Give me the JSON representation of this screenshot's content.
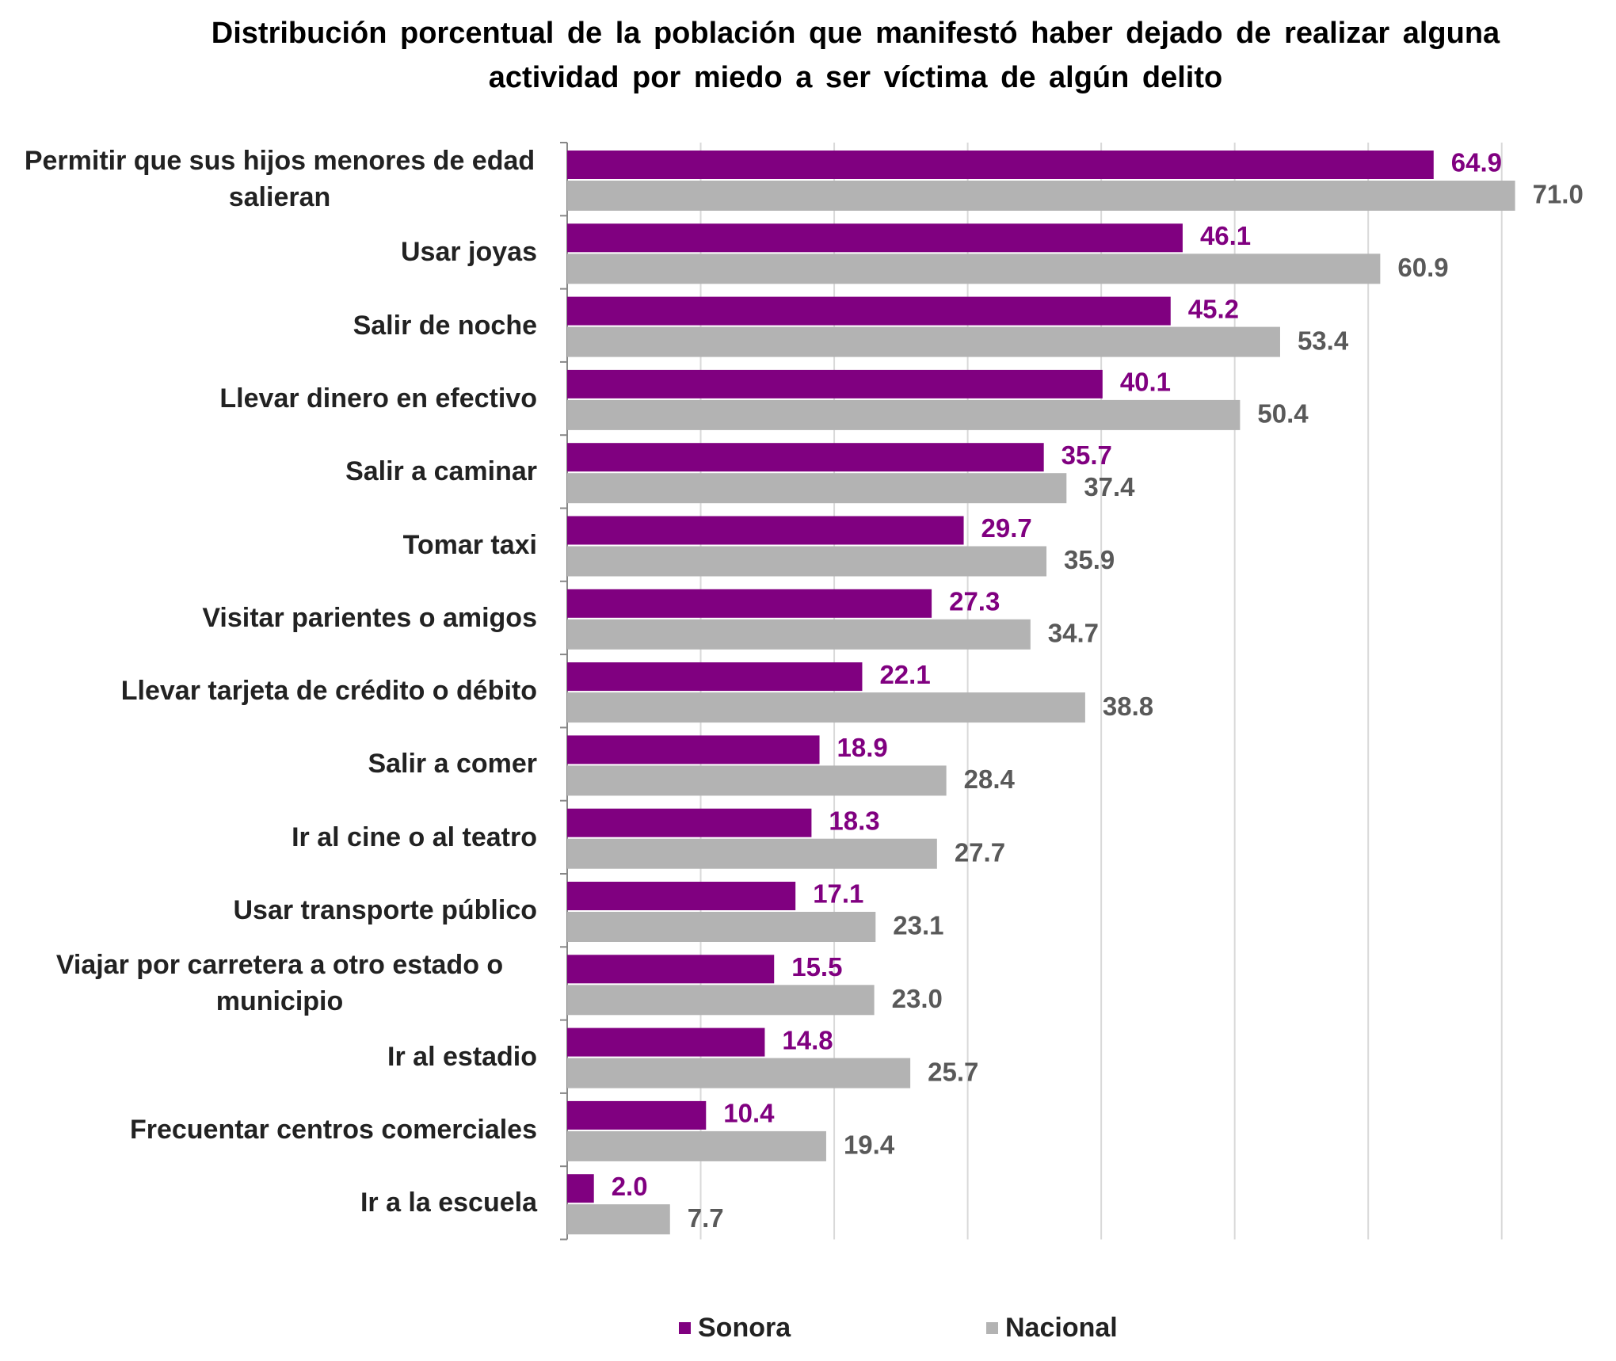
{
  "chart_data": {
    "type": "bar",
    "orientation": "horizontal",
    "title": "Distribución porcentual de la población que manifestó haber dejado de realizar alguna actividad por miedo a ser víctima de algún delito",
    "categories": [
      "Permitir que sus hijos menores de edad salieran",
      "Usar joyas",
      "Salir de noche",
      "Llevar dinero en efectivo",
      "Salir a caminar",
      "Tomar taxi",
      "Visitar parientes o amigos",
      "Llevar tarjeta de crédito o débito",
      "Salir a comer",
      "Ir al cine o al teatro",
      "Usar transporte público",
      "Viajar por carretera a otro estado o municipio",
      "Ir al estadio",
      "Frecuentar centros comerciales",
      "Ir a la escuela"
    ],
    "series": [
      {
        "name": "Sonora",
        "color": "#800080",
        "values": [
          64.9,
          46.1,
          45.2,
          40.1,
          35.7,
          29.7,
          27.3,
          22.1,
          18.9,
          18.3,
          17.1,
          15.5,
          14.8,
          10.4,
          2.0
        ],
        "value_labels": [
          "64.9",
          "46.1",
          "45.2",
          "40.1",
          "35.7",
          "29.7",
          "27.3",
          "22.1",
          "18.9",
          "18.3",
          "17.1",
          "15.5",
          "14.8",
          "10.4",
          "2.0"
        ]
      },
      {
        "name": "Nacional",
        "color": "#b3b3b3",
        "values": [
          71.0,
          60.9,
          53.4,
          50.4,
          37.4,
          35.9,
          34.7,
          38.8,
          28.4,
          27.7,
          23.1,
          23.0,
          25.7,
          19.4,
          7.7
        ],
        "value_labels": [
          "71.0",
          "60.9",
          "53.4",
          "50.4",
          "37.4",
          "35.9",
          "34.7",
          "38.8",
          "28.4",
          "27.7",
          "23.1",
          "23.0",
          "25.7",
          "19.4",
          "7.7"
        ]
      }
    ],
    "xlim": [
      0,
      75
    ],
    "xticks": [
      10,
      20,
      30,
      40,
      50,
      60,
      70
    ],
    "grid": true,
    "legend": "bottom"
  }
}
